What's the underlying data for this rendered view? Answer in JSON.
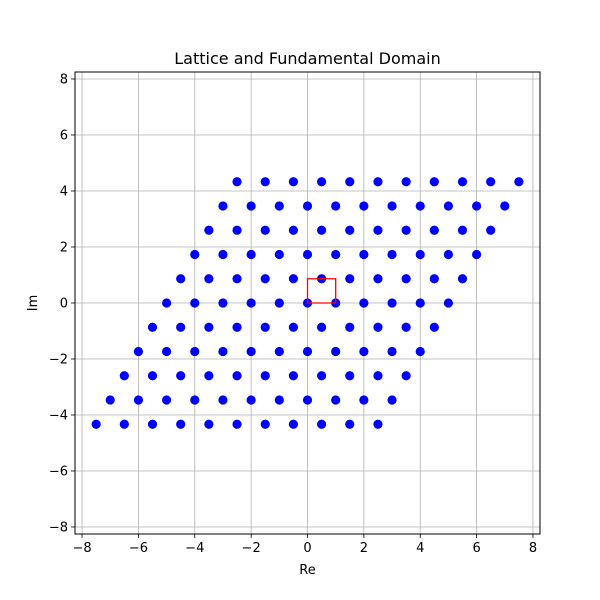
{
  "chart_data": {
    "type": "scatter",
    "title": "Lattice and Fundamental Domain",
    "xlabel": "Re",
    "ylabel": "Im",
    "xlim": [
      -8.25,
      8.25
    ],
    "ylim": [
      -8.25,
      8.25
    ],
    "xticks": [
      -8,
      -6,
      -4,
      -2,
      0,
      2,
      4,
      6,
      8
    ],
    "yticks": [
      -8,
      -6,
      -4,
      -2,
      0,
      2,
      4,
      6,
      8
    ],
    "grid": true,
    "lattice": {
      "omega1": [
        1,
        0
      ],
      "omega2": [
        0.5,
        0.866
      ],
      "m_range": [
        -5,
        5
      ],
      "n_range": [
        -5,
        5
      ],
      "color": "#0000ff"
    },
    "fundamental_domain": {
      "vertices": [
        [
          0,
          0
        ],
        [
          1,
          0
        ],
        [
          1,
          0.866
        ],
        [
          0,
          0.866
        ]
      ],
      "color": "#ff0000"
    },
    "colors": {
      "points": "#0000ff",
      "domain": "#ff0000",
      "grid": "#b0b0b0",
      "axes": "#000000"
    }
  }
}
